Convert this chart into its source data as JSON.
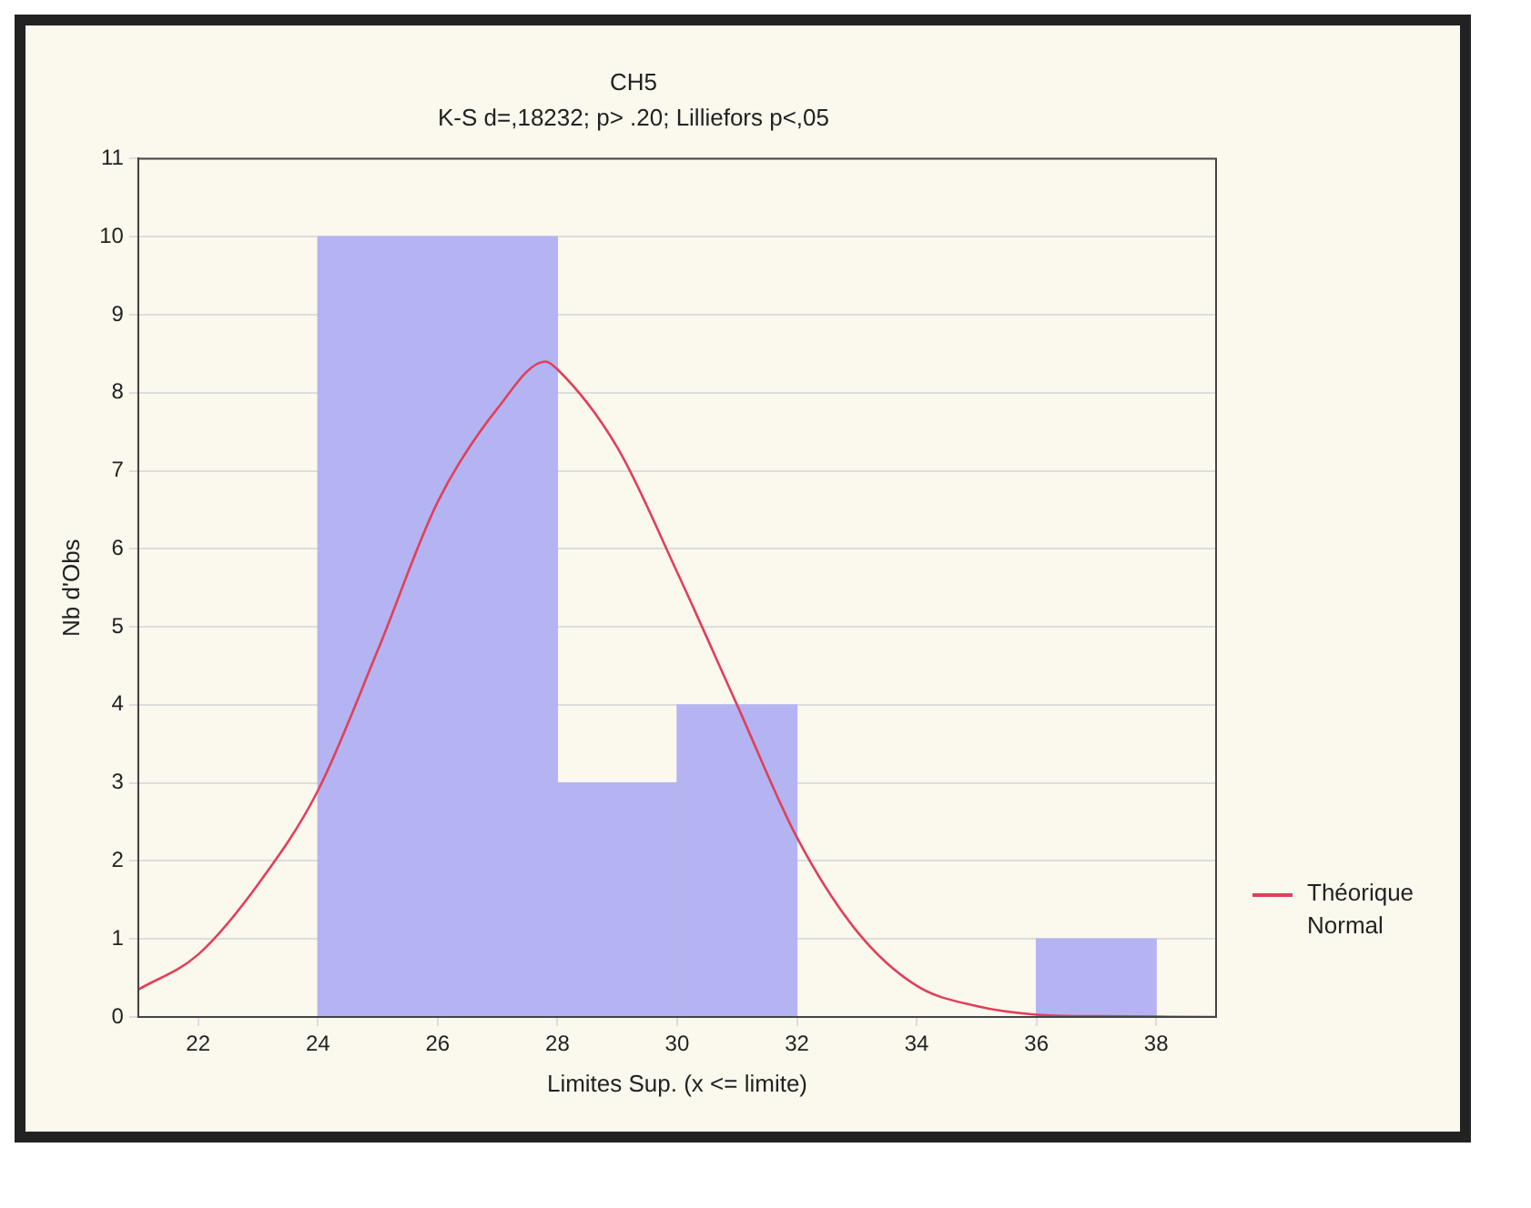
{
  "chart_data": {
    "type": "histogram",
    "title": "CH5",
    "subtitle": "K-S d=,18232; p> .20; Lilliefors p<,05",
    "xlabel": "Limites Sup. (x <= limite)",
    "ylabel": "Nb d'Obs",
    "bins": [
      22,
      24,
      26,
      28,
      30,
      32,
      34,
      36,
      38
    ],
    "values": [
      0,
      10,
      10,
      3,
      4,
      0,
      0,
      1
    ],
    "color": "#b4b4f2",
    "series": [
      {
        "type": "line",
        "name": "Théorique Normal",
        "color": "#e0405a",
        "x": [
          21,
          22,
          23,
          24,
          25,
          26,
          27,
          27.8,
          28,
          29,
          30,
          31,
          32,
          33,
          34,
          35,
          36,
          37,
          39
        ],
        "values": [
          0.35,
          0.8,
          1.7,
          2.9,
          4.7,
          6.6,
          7.8,
          8.4,
          8.3,
          7.3,
          5.7,
          4.0,
          2.3,
          1.1,
          0.4,
          0.14,
          0.03,
          0.01,
          0
        ]
      }
    ],
    "xlim": [
      21,
      39
    ],
    "xticks": [
      22,
      24,
      26,
      28,
      30,
      32,
      34,
      36,
      38
    ],
    "ylim": [
      0,
      11
    ],
    "yticks": [
      0,
      1,
      2,
      3,
      4,
      5,
      6,
      7,
      8,
      9,
      10,
      11
    ],
    "grid": "y",
    "legend": "right",
    "marker": "none"
  }
}
